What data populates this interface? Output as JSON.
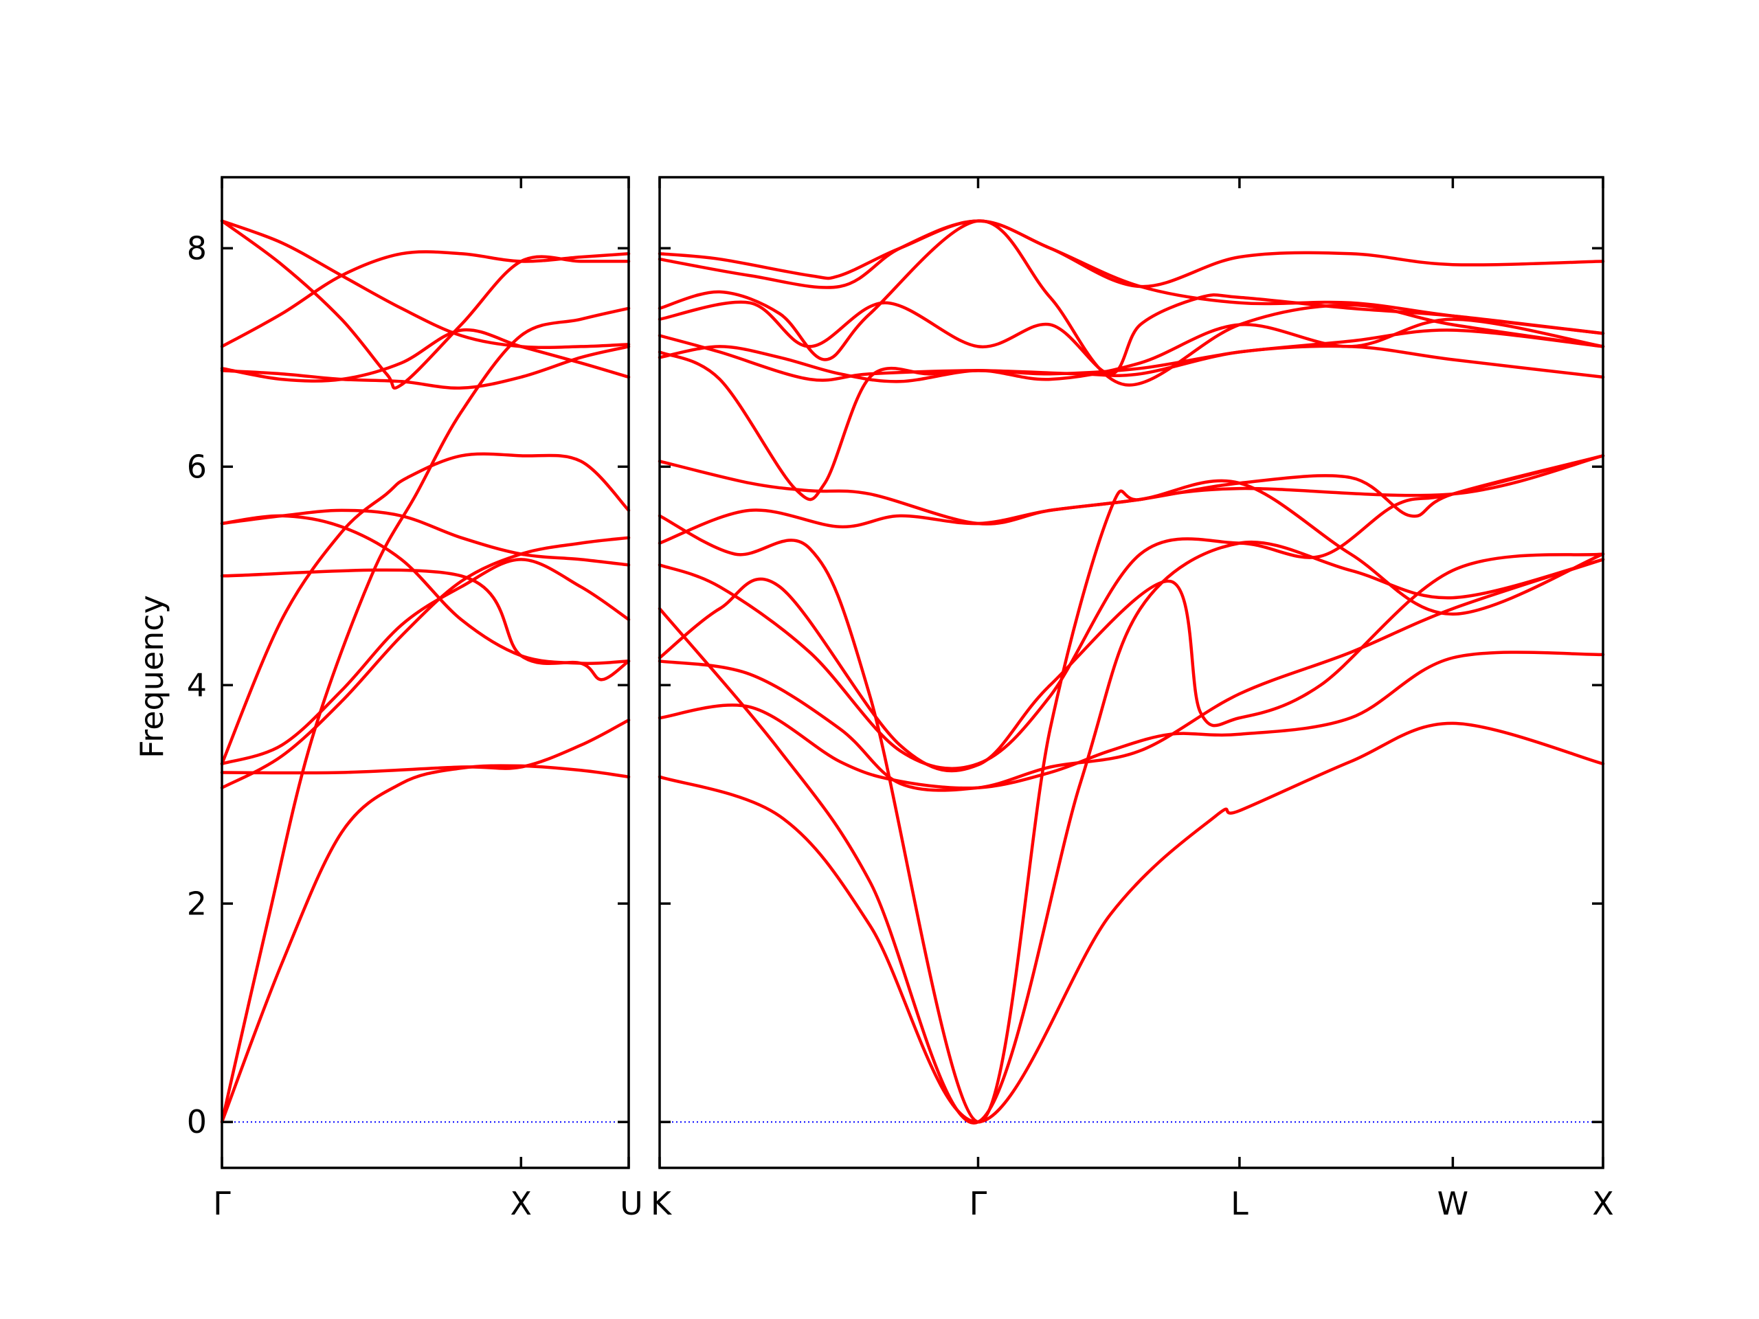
{
  "chart_data": {
    "type": "line",
    "ylabel": "Frequency",
    "ylim": [
      -0.42,
      8.65
    ],
    "yticks": [
      "0",
      "2",
      "4",
      "6",
      "8"
    ],
    "colors": {
      "bands": "#ff0000",
      "zero_line": "#0000ff",
      "axes": "#000000"
    },
    "grid": false,
    "legend": "none",
    "panels": [
      {
        "path_labels": [
          "Γ",
          "X",
          "U"
        ],
        "path_ticks": [
          0,
          1,
          1.36
        ],
        "series": [
          {
            "x": [
              0,
              0.2,
              0.4,
              0.6,
              0.8,
              1.0,
              1.2,
              1.36
            ],
            "y": [
              0,
              1.45,
              2.65,
              3.1,
              3.24,
              3.26,
              3.22,
              3.16
            ]
          },
          {
            "x": [
              0,
              0.15,
              0.3,
              0.5,
              0.65,
              0.8,
              1.0,
              1.2,
              1.36
            ],
            "y": [
              0,
              1.8,
              3.5,
              5.0,
              5.75,
              6.5,
              7.2,
              7.35,
              7.45
            ]
          },
          {
            "x": [
              0,
              0.2,
              0.4,
              0.6,
              0.8,
              1.0,
              1.2,
              1.36
            ],
            "y": [
              3.06,
              3.35,
              3.85,
              4.45,
              4.95,
              5.2,
              5.3,
              5.35
            ]
          },
          {
            "x": [
              0,
              0.2,
              0.4,
              0.6,
              0.8,
              1.0,
              1.2,
              1.36
            ],
            "y": [
              3.28,
              3.45,
              3.95,
              4.55,
              4.9,
              5.15,
              4.9,
              4.6
            ]
          },
          {
            "x": [
              0,
              0.2,
              0.4,
              0.55,
              0.62,
              0.8,
              1.0,
              1.2,
              1.36
            ],
            "y": [
              3.28,
              4.6,
              5.4,
              5.75,
              5.9,
              6.1,
              6.1,
              6.05,
              5.6
            ]
          },
          {
            "x": [
              0,
              0.2,
              0.4,
              0.6,
              0.8,
              1.0,
              1.2,
              1.36
            ],
            "y": [
              5.48,
              5.55,
              5.6,
              5.55,
              5.35,
              5.2,
              5.15,
              5.1
            ]
          },
          {
            "x": [
              0,
              0.2,
              0.4,
              0.6,
              0.8,
              1.0,
              1.2,
              1.36
            ],
            "y": [
              5.48,
              5.55,
              5.45,
              5.15,
              4.6,
              4.27,
              4.2,
              4.22
            ]
          },
          {
            "x": [
              0,
              0.2,
              0.4,
              0.6,
              0.8,
              1.0,
              1.2,
              1.36
            ],
            "y": [
              6.88,
              6.85,
              6.8,
              6.78,
              6.72,
              6.82,
              7.0,
              7.1
            ]
          },
          {
            "x": [
              0,
              0.2,
              0.4,
              0.6,
              0.8,
              1.0,
              1.2,
              1.36
            ],
            "y": [
              6.9,
              6.8,
              6.8,
              6.95,
              7.25,
              7.1,
              6.95,
              6.82
            ]
          },
          {
            "x": [
              0,
              0.2,
              0.4,
              0.6,
              0.8,
              1.0,
              1.2,
              1.36
            ],
            "y": [
              7.1,
              7.4,
              7.75,
              7.95,
              7.95,
              7.88,
              7.92,
              7.95
            ]
          },
          {
            "x": [
              0,
              0.2,
              0.4,
              0.55,
              0.6,
              0.8,
              1.0,
              1.2,
              1.36
            ],
            "y": [
              8.25,
              7.85,
              7.35,
              6.85,
              6.75,
              7.3,
              7.88,
              7.88,
              7.88
            ]
          },
          {
            "x": [
              0,
              0.2,
              0.4,
              0.6,
              0.8,
              1.0,
              1.2,
              1.36
            ],
            "y": [
              8.25,
              8.05,
              7.75,
              7.45,
              7.2,
              7.1,
              7.1,
              7.12
            ]
          },
          {
            "x": [
              0,
              0.4,
              0.8,
              1.0,
              1.2,
              1.36
            ],
            "y": [
              3.2,
              3.2,
              3.25,
              3.25,
              3.45,
              3.68
            ]
          },
          {
            "x": [
              0,
              0.8,
              1.0,
              1.2,
              1.27,
              1.36
            ],
            "y": [
              5.0,
              5.0,
              4.27,
              4.2,
              4.05,
              4.22
            ]
          }
        ]
      },
      {
        "path_labels": [
          "K",
          "Γ",
          "L",
          "W",
          "X"
        ],
        "path_ticks": [
          0,
          1.06,
          1.93,
          2.64,
          3.14
        ],
        "series": [
          {
            "x": [
              0,
              0.4,
              0.7,
              1.06,
              1.5,
              1.85,
              1.93,
              2.3,
              2.64,
              3.14
            ],
            "y": [
              3.16,
              2.8,
              1.8,
              0,
              1.9,
              2.8,
              2.85,
              3.3,
              3.65,
              3.28
            ]
          },
          {
            "x": [
              0,
              0.4,
              0.7,
              1.06,
              1.4,
              1.6,
              1.93,
              2.3,
              2.64,
              3.14
            ],
            "y": [
              4.7,
              3.4,
              2.2,
              0,
              3.1,
              4.7,
              5.3,
              5.05,
              4.8,
              5.15
            ]
          },
          {
            "x": [
              0,
              0.25,
              0.5,
              0.7,
              1.06,
              1.3,
              1.5,
              1.6,
              1.93,
              2.64,
              3.14
            ],
            "y": [
              5.55,
              5.2,
              5.25,
              3.9,
              0,
              3.6,
              5.6,
              5.7,
              5.8,
              5.75,
              6.1
            ]
          },
          {
            "x": [
              0,
              0.3,
              0.6,
              0.8,
              1.06,
              1.3,
              1.5,
              1.7,
              1.93,
              2.3,
              2.64,
              3.14
            ],
            "y": [
              3.7,
              3.8,
              3.3,
              3.12,
              3.06,
              3.2,
              3.4,
              3.55,
              3.55,
              3.7,
              4.25,
              4.28
            ]
          },
          {
            "x": [
              0,
              0.3,
              0.6,
              0.8,
              1.06,
              1.3,
              1.6,
              1.93,
              2.3,
              2.64,
              3.14
            ],
            "y": [
              4.22,
              4.1,
              3.6,
              3.1,
              3.06,
              3.25,
              3.4,
              3.92,
              4.3,
              4.7,
              5.15
            ]
          },
          {
            "x": [
              0,
              0.2,
              0.4,
              0.8,
              1.06,
              1.3,
              1.7,
              1.8,
              1.93,
              2.2,
              2.64,
              3.14
            ],
            "y": [
              4.25,
              4.7,
              4.9,
              3.45,
              3.27,
              4.0,
              4.95,
              3.75,
              3.7,
              4.0,
              5.05,
              5.2
            ]
          },
          {
            "x": [
              0,
              0.2,
              0.5,
              0.8,
              1.06,
              1.3,
              1.6,
              1.93,
              2.2,
              2.45,
              2.64,
              3.14
            ],
            "y": [
              5.1,
              4.9,
              4.3,
              3.4,
              3.28,
              3.9,
              5.2,
              5.3,
              5.18,
              5.65,
              5.75,
              6.1
            ]
          },
          {
            "x": [
              0,
              0.3,
              0.6,
              0.8,
              1.06,
              1.3,
              1.6,
              1.93,
              2.3,
              2.5,
              2.64,
              3.14
            ],
            "y": [
              5.3,
              5.6,
              5.45,
              5.55,
              5.48,
              5.6,
              5.7,
              5.85,
              5.9,
              5.55,
              5.75,
              6.1
            ]
          },
          {
            "x": [
              0,
              0.3,
              0.5,
              0.7,
              1.06,
              1.3,
              1.6,
              1.93,
              2.3,
              2.64,
              3.14
            ],
            "y": [
              6.05,
              5.85,
              5.78,
              5.75,
              5.48,
              5.6,
              5.7,
              5.85,
              5.2,
              4.65,
              5.2
            ]
          },
          {
            "x": [
              0,
              0.2,
              0.45,
              0.55,
              0.7,
              0.9,
              1.06,
              1.4,
              1.6,
              1.93,
              2.3,
              2.64,
              3.14
            ],
            "y": [
              7.05,
              6.8,
              5.8,
              5.85,
              6.82,
              6.85,
              6.88,
              6.85,
              6.85,
              7.05,
              7.1,
              6.98,
              6.82
            ]
          },
          {
            "x": [
              0,
              0.2,
              0.4,
              0.6,
              0.8,
              1.06,
              1.3,
              1.6,
              1.93,
              2.3,
              2.64,
              3.14
            ],
            "y": [
              7.0,
              7.1,
              7.0,
              6.85,
              6.78,
              6.88,
              6.8,
              6.95,
              7.3,
              7.1,
              7.35,
              7.1
            ]
          },
          {
            "x": [
              0,
              0.2,
              0.5,
              0.7,
              1.06,
              1.3,
              1.6,
              1.93,
              2.3,
              2.64,
              3.14
            ],
            "y": [
              7.2,
              7.05,
              6.8,
              6.85,
              6.88,
              6.85,
              6.9,
              7.05,
              7.15,
              7.25,
              7.1
            ]
          },
          {
            "x": [
              0,
              0.3,
              0.5,
              0.75,
              1.06,
              1.3,
              1.5,
              1.6,
              1.8,
              1.93,
              2.3,
              2.64,
              3.14
            ],
            "y": [
              7.35,
              7.5,
              7.1,
              7.5,
              7.1,
              7.3,
              6.85,
              7.3,
              7.55,
              7.55,
              7.45,
              7.38,
              7.22
            ]
          },
          {
            "x": [
              0,
              0.2,
              0.4,
              0.55,
              0.7,
              1.06,
              1.3,
              1.55,
              1.93,
              2.3,
              2.64,
              3.14
            ],
            "y": [
              7.45,
              7.6,
              7.4,
              6.98,
              7.4,
              8.25,
              7.55,
              6.75,
              7.3,
              7.48,
              7.3,
              7.1
            ]
          },
          {
            "x": [
              0,
              0.3,
              0.6,
              0.8,
              1.06,
              1.3,
              1.6,
              1.93,
              2.3,
              2.64,
              3.14
            ],
            "y": [
              7.9,
              7.75,
              7.65,
              8.0,
              8.25,
              8.0,
              7.65,
              7.5,
              7.5,
              7.38,
              7.22
            ]
          },
          {
            "x": [
              0,
              0.2,
              0.5,
              0.6,
              0.8,
              1.06,
              1.3,
              1.6,
              1.93,
              2.3,
              2.64,
              3.14
            ],
            "y": [
              7.95,
              7.9,
              7.75,
              7.75,
              8.0,
              8.25,
              8.0,
              7.65,
              7.92,
              7.95,
              7.85,
              7.88
            ]
          }
        ]
      }
    ]
  }
}
